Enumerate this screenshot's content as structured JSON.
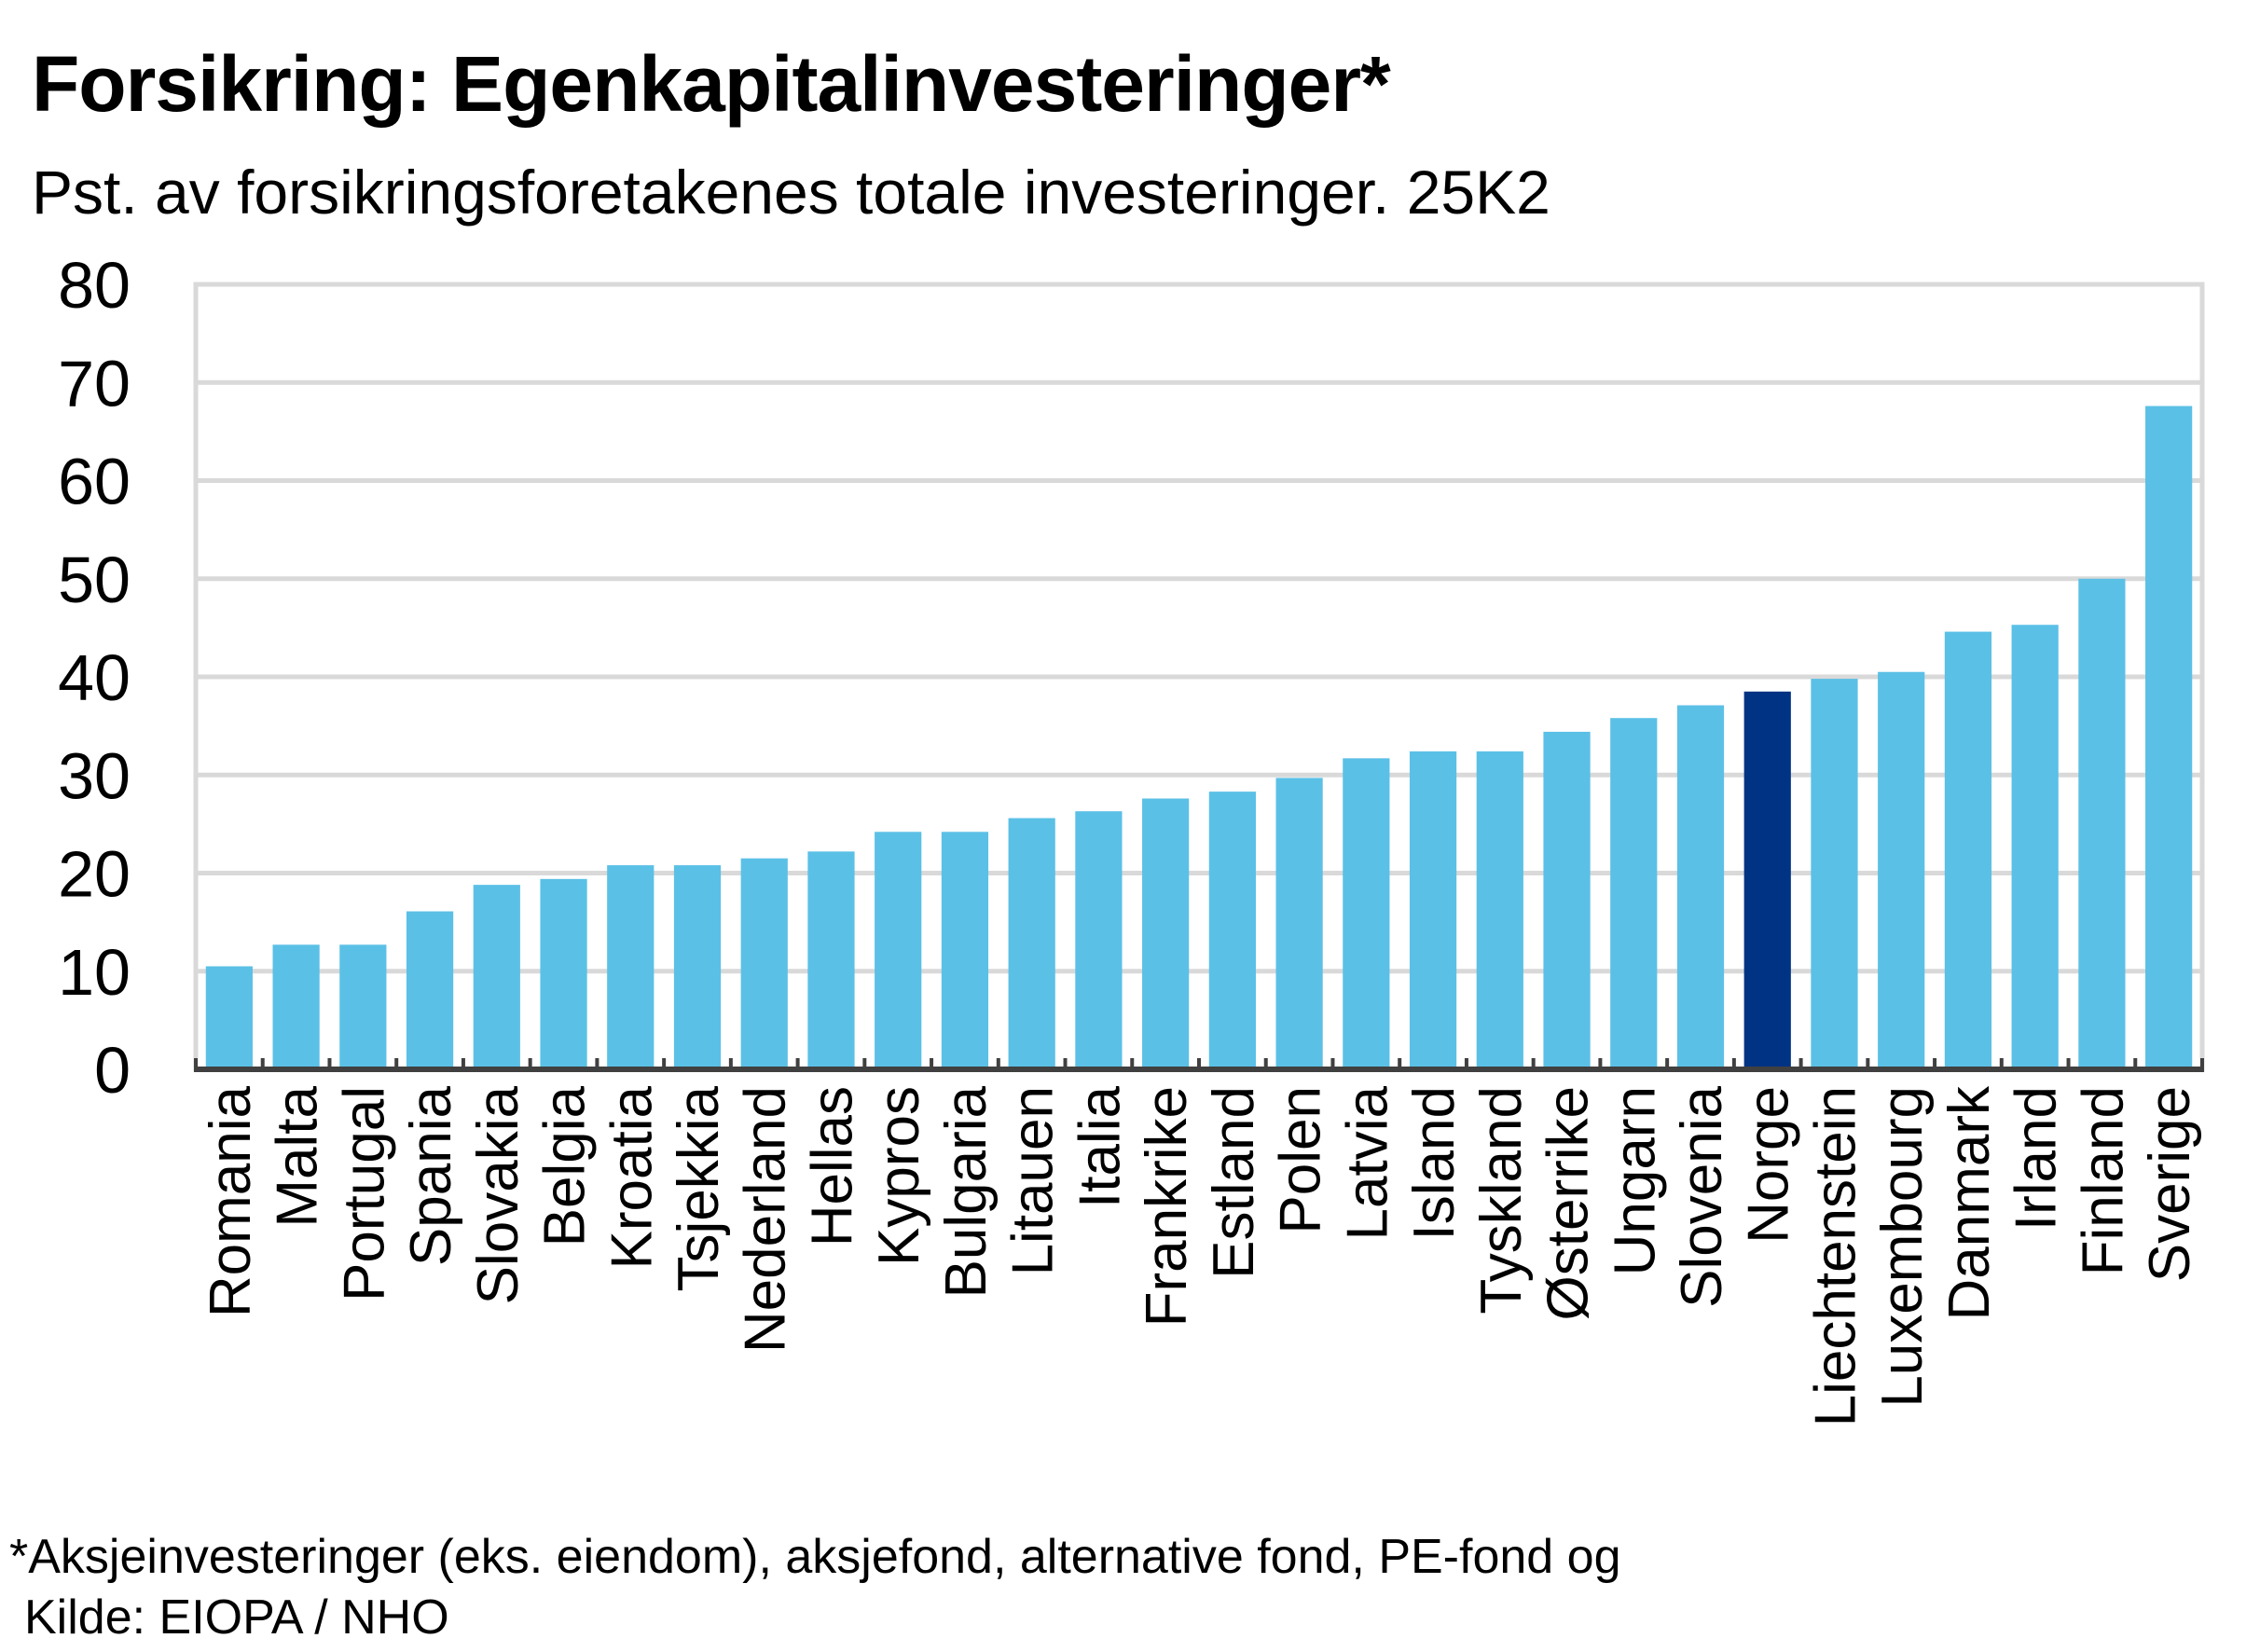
{
  "header": {
    "title": "Forsikring: Egenkapitalinvesteringer*",
    "subtitle": "Pst. av forsikringsforetakenes totale investeringer. 25K2"
  },
  "footer": {
    "footnote": "*Aksjeinvesteringer (eks.  eiendom), aksjefond, alternative fond, PE-fond og",
    "source": "Kilde: EIOPA / NHO"
  },
  "colors": {
    "bar": "#5bc0e6",
    "highlight": "#003383",
    "grid": "#d9d9d9",
    "axis": "#404040"
  },
  "chart_data": {
    "type": "bar",
    "title": "Forsikring: Egenkapitalinvesteringer*",
    "subtitle": "Pst. av forsikringsforetakenes totale investeringer. 25K2",
    "xlabel": "",
    "ylabel": "",
    "ylim": [
      0,
      80
    ],
    "yticks": [
      0,
      10,
      20,
      30,
      40,
      50,
      60,
      70,
      80
    ],
    "grid": true,
    "highlight": "Norge",
    "categories": [
      "Romania",
      "Malta",
      "Portugal",
      "Spania",
      "Slovakia",
      "Belgia",
      "Kroatia",
      "Tsjekkia",
      "Nederland",
      "Hellas",
      "Kypros",
      "Bulgaria",
      "Litauen",
      "Italia",
      "Frankrike",
      "Estland",
      "Polen",
      "Latvia",
      "Island",
      "Tyskland",
      "Østerrike",
      "Ungarn",
      "Slovenia",
      "Norge",
      "Liechtenstein",
      "Luxembourg",
      "Danmark",
      "Irland",
      "Finland",
      "Sverige"
    ],
    "values": [
      10.5,
      12.7,
      12.7,
      16.1,
      18.8,
      19.4,
      20.8,
      20.8,
      21.5,
      22.2,
      24.2,
      24.2,
      25.6,
      26.3,
      27.6,
      28.3,
      29.7,
      31.7,
      32.4,
      32.4,
      34.4,
      35.8,
      37.1,
      38.5,
      39.8,
      40.5,
      44.6,
      45.3,
      50.0,
      67.6
    ]
  }
}
